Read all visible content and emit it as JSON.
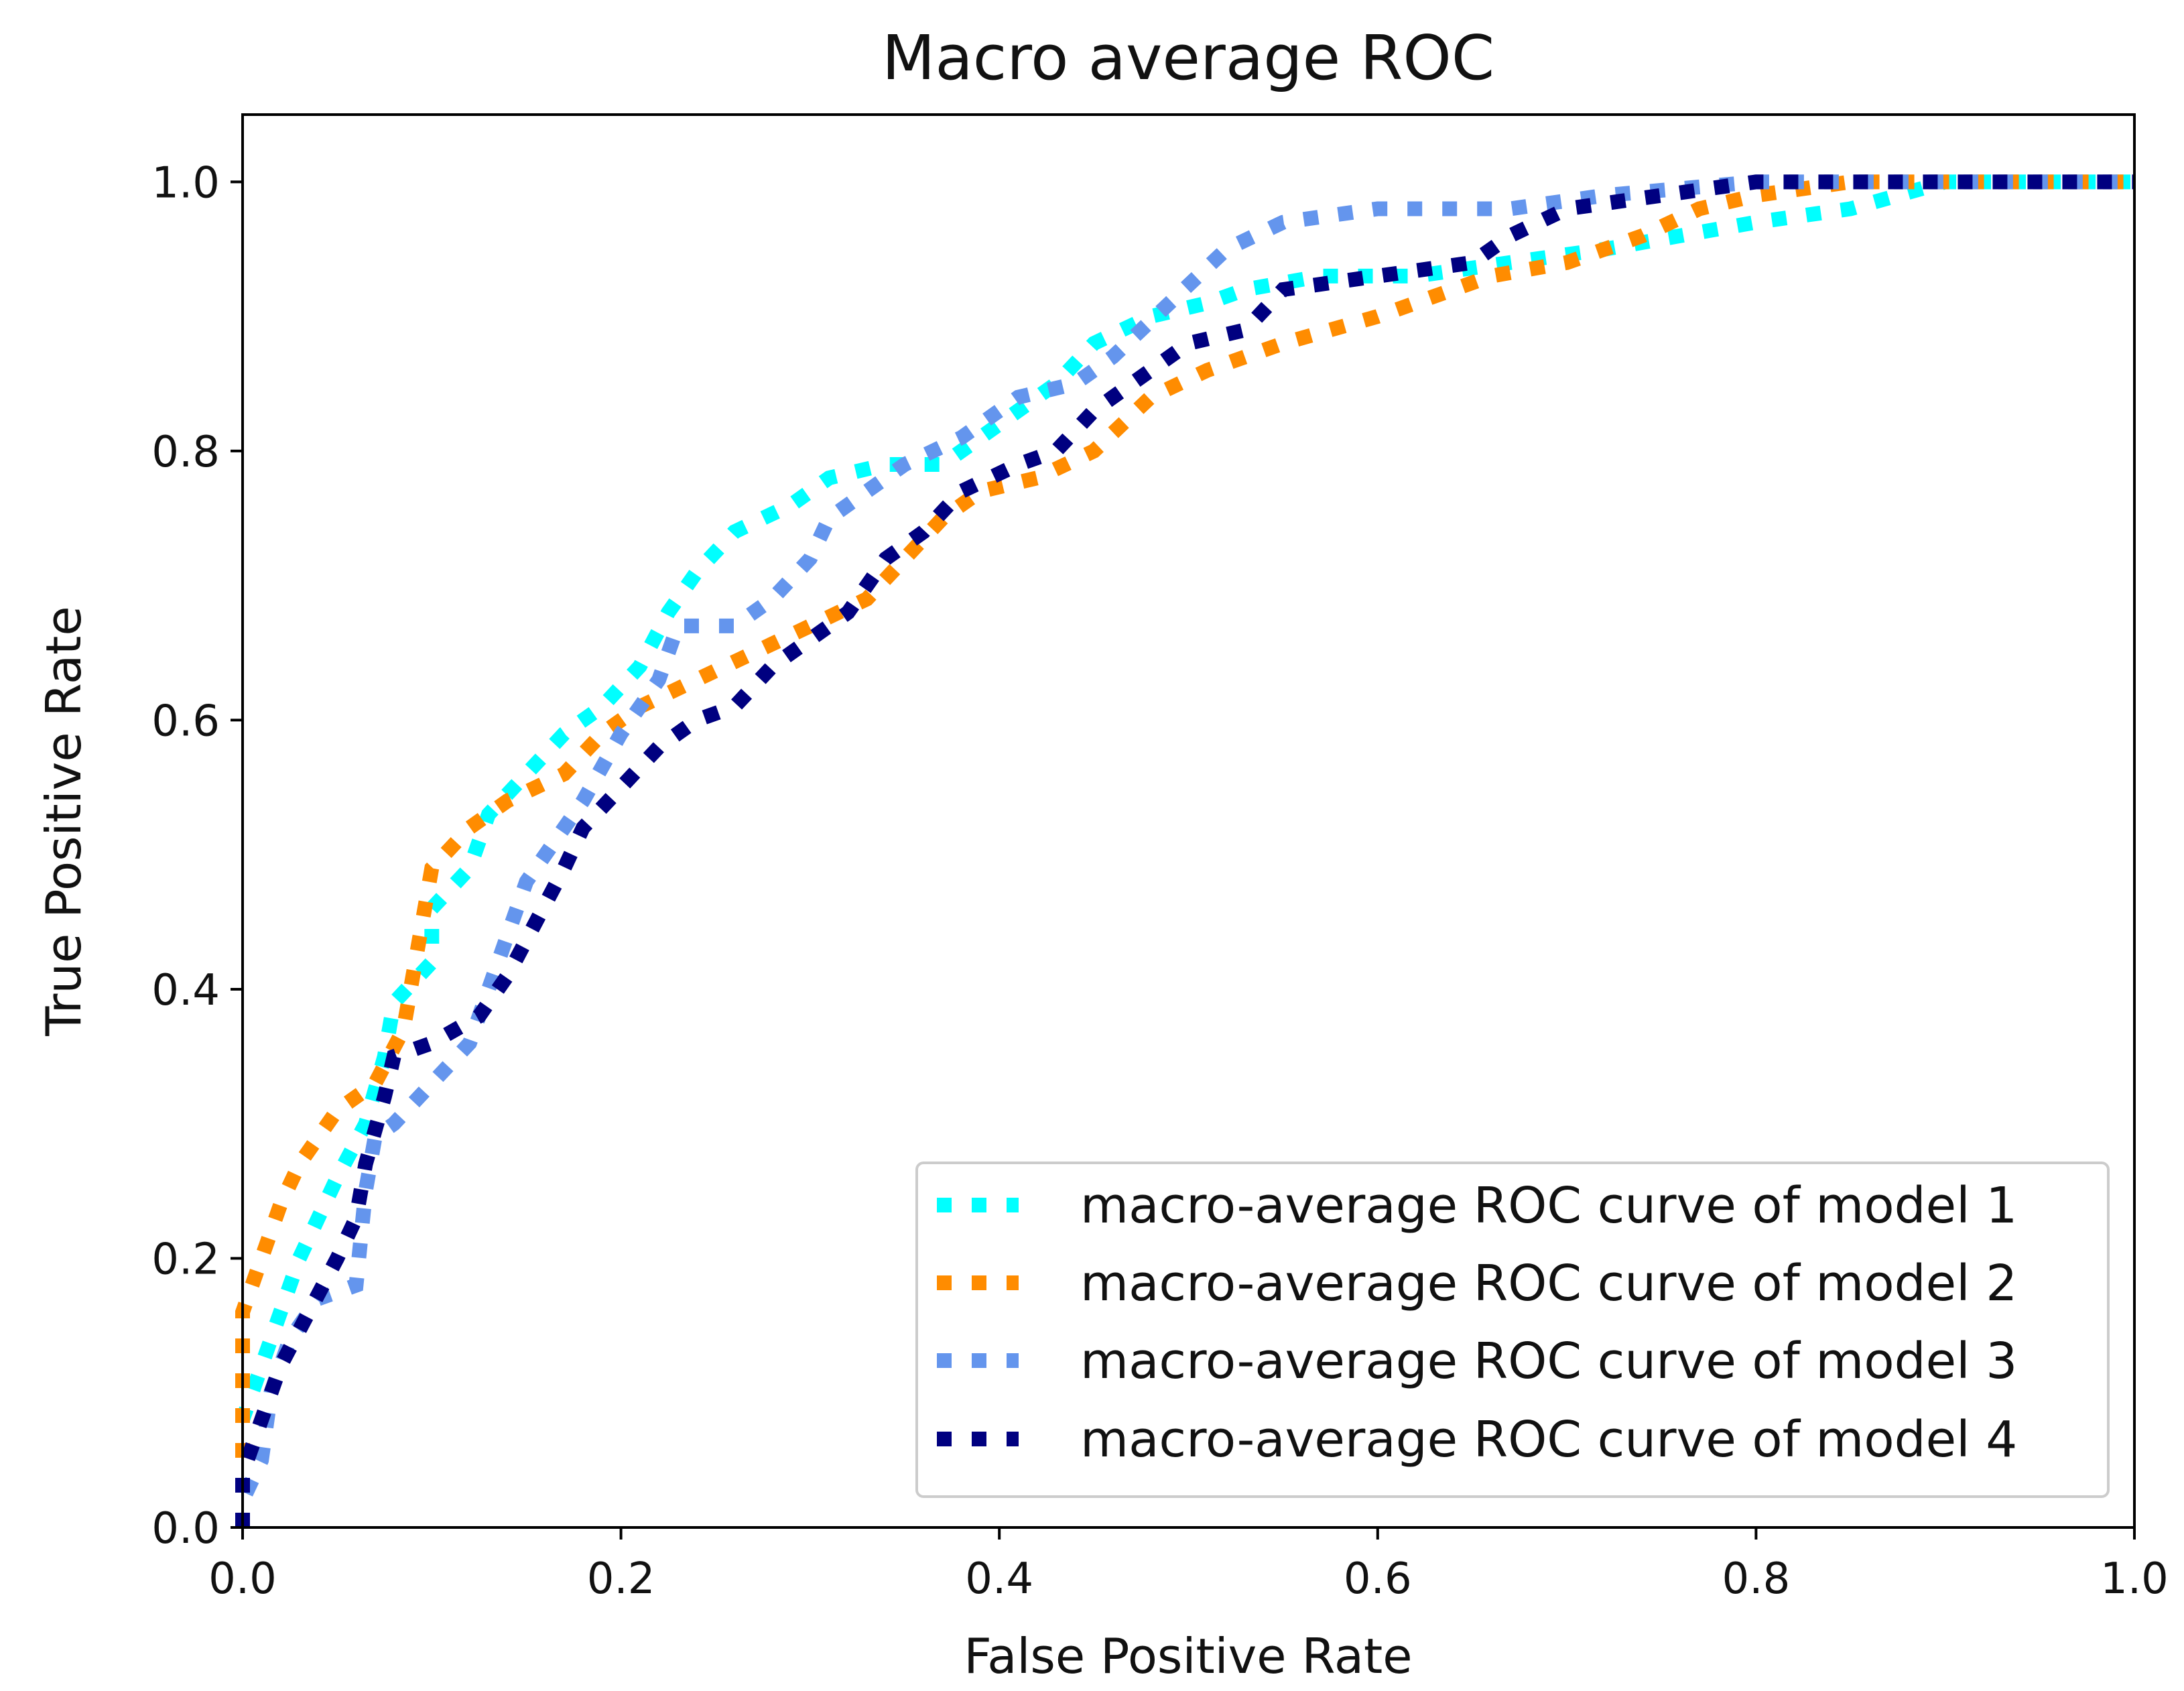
{
  "chart_data": {
    "type": "line",
    "title": "Macro average ROC",
    "xlabel": "False Positive Rate",
    "ylabel": "True Positive Rate",
    "xlim": [
      0.0,
      1.0
    ],
    "ylim": [
      0.0,
      1.05
    ],
    "grid": false,
    "legend_position": "bottom-right",
    "xticks": [
      "0.0",
      "0.2",
      "0.4",
      "0.6",
      "0.8",
      "1.0"
    ],
    "yticks": [
      "0.0",
      "0.2",
      "0.4",
      "0.6",
      "0.8",
      "1.0"
    ],
    "xtick_values": [
      0.0,
      0.2,
      0.4,
      0.6,
      0.8,
      1.0
    ],
    "ytick_values": [
      0.0,
      0.2,
      0.4,
      0.6,
      0.8,
      1.0
    ],
    "series": [
      {
        "name": "macro-average ROC curve of model 1",
        "color": "#00ffff",
        "points": [
          [
            0.0,
            0.0
          ],
          [
            0.0,
            0.08
          ],
          [
            0.01,
            0.12
          ],
          [
            0.02,
            0.16
          ],
          [
            0.03,
            0.2
          ],
          [
            0.04,
            0.23
          ],
          [
            0.05,
            0.26
          ],
          [
            0.065,
            0.3
          ],
          [
            0.075,
            0.35
          ],
          [
            0.08,
            0.39
          ],
          [
            0.1,
            0.42
          ],
          [
            0.1,
            0.46
          ],
          [
            0.12,
            0.49
          ],
          [
            0.13,
            0.53
          ],
          [
            0.15,
            0.56
          ],
          [
            0.17,
            0.59
          ],
          [
            0.19,
            0.61
          ],
          [
            0.21,
            0.64
          ],
          [
            0.225,
            0.68
          ],
          [
            0.24,
            0.71
          ],
          [
            0.26,
            0.74
          ],
          [
            0.29,
            0.76
          ],
          [
            0.31,
            0.78
          ],
          [
            0.34,
            0.79
          ],
          [
            0.37,
            0.79
          ],
          [
            0.4,
            0.82
          ],
          [
            0.43,
            0.85
          ],
          [
            0.45,
            0.88
          ],
          [
            0.48,
            0.9
          ],
          [
            0.51,
            0.91
          ],
          [
            0.53,
            0.92
          ],
          [
            0.57,
            0.93
          ],
          [
            0.62,
            0.93
          ],
          [
            0.67,
            0.94
          ],
          [
            0.72,
            0.95
          ],
          [
            0.76,
            0.96
          ],
          [
            0.8,
            0.97
          ],
          [
            0.85,
            0.98
          ],
          [
            0.9,
            1.0
          ],
          [
            1.0,
            1.0
          ]
        ]
      },
      {
        "name": "macro-average ROC curve of model 2",
        "color": "#ff8c00",
        "points": [
          [
            0.0,
            0.0
          ],
          [
            0.0,
            0.16
          ],
          [
            0.01,
            0.2
          ],
          [
            0.02,
            0.24
          ],
          [
            0.03,
            0.27
          ],
          [
            0.05,
            0.31
          ],
          [
            0.07,
            0.33
          ],
          [
            0.085,
            0.37
          ],
          [
            0.09,
            0.41
          ],
          [
            0.095,
            0.45
          ],
          [
            0.1,
            0.49
          ],
          [
            0.12,
            0.52
          ],
          [
            0.14,
            0.54
          ],
          [
            0.17,
            0.56
          ],
          [
            0.19,
            0.59
          ],
          [
            0.21,
            0.61
          ],
          [
            0.24,
            0.63
          ],
          [
            0.27,
            0.65
          ],
          [
            0.3,
            0.67
          ],
          [
            0.33,
            0.69
          ],
          [
            0.35,
            0.72
          ],
          [
            0.37,
            0.75
          ],
          [
            0.39,
            0.77
          ],
          [
            0.42,
            0.78
          ],
          [
            0.45,
            0.8
          ],
          [
            0.48,
            0.84
          ],
          [
            0.51,
            0.86
          ],
          [
            0.55,
            0.88
          ],
          [
            0.6,
            0.9
          ],
          [
            0.66,
            0.93
          ],
          [
            0.7,
            0.94
          ],
          [
            0.74,
            0.96
          ],
          [
            0.77,
            0.98
          ],
          [
            0.8,
            0.99
          ],
          [
            0.85,
            1.0
          ],
          [
            1.0,
            1.0
          ]
        ]
      },
      {
        "name": "macro-average ROC curve of model 3",
        "color": "#6495ed",
        "points": [
          [
            0.0,
            0.0
          ],
          [
            0.0,
            0.02
          ],
          [
            0.01,
            0.05
          ],
          [
            0.015,
            0.1
          ],
          [
            0.025,
            0.14
          ],
          [
            0.04,
            0.17
          ],
          [
            0.06,
            0.18
          ],
          [
            0.065,
            0.25
          ],
          [
            0.07,
            0.29
          ],
          [
            0.08,
            0.3
          ],
          [
            0.1,
            0.33
          ],
          [
            0.12,
            0.36
          ],
          [
            0.13,
            0.4
          ],
          [
            0.14,
            0.44
          ],
          [
            0.15,
            0.48
          ],
          [
            0.165,
            0.51
          ],
          [
            0.18,
            0.54
          ],
          [
            0.2,
            0.59
          ],
          [
            0.22,
            0.63
          ],
          [
            0.23,
            0.67
          ],
          [
            0.26,
            0.67
          ],
          [
            0.28,
            0.69
          ],
          [
            0.3,
            0.72
          ],
          [
            0.31,
            0.75
          ],
          [
            0.33,
            0.77
          ],
          [
            0.35,
            0.79
          ],
          [
            0.38,
            0.81
          ],
          [
            0.41,
            0.84
          ],
          [
            0.44,
            0.85
          ],
          [
            0.46,
            0.87
          ],
          [
            0.49,
            0.91
          ],
          [
            0.52,
            0.95
          ],
          [
            0.55,
            0.97
          ],
          [
            0.6,
            0.98
          ],
          [
            0.67,
            0.98
          ],
          [
            0.72,
            0.99
          ],
          [
            0.8,
            1.0
          ],
          [
            1.0,
            1.0
          ]
        ]
      },
      {
        "name": "macro-average ROC curve of model 4",
        "color": "#000080",
        "points": [
          [
            0.0,
            0.0
          ],
          [
            0.0,
            0.04
          ],
          [
            0.01,
            0.08
          ],
          [
            0.02,
            0.12
          ],
          [
            0.035,
            0.16
          ],
          [
            0.05,
            0.2
          ],
          [
            0.06,
            0.23
          ],
          [
            0.065,
            0.27
          ],
          [
            0.075,
            0.32
          ],
          [
            0.08,
            0.35
          ],
          [
            0.1,
            0.36
          ],
          [
            0.125,
            0.38
          ],
          [
            0.14,
            0.41
          ],
          [
            0.155,
            0.45
          ],
          [
            0.17,
            0.49
          ],
          [
            0.18,
            0.52
          ],
          [
            0.2,
            0.55
          ],
          [
            0.22,
            0.58
          ],
          [
            0.24,
            0.6
          ],
          [
            0.26,
            0.61
          ],
          [
            0.28,
            0.64
          ],
          [
            0.3,
            0.66
          ],
          [
            0.32,
            0.68
          ],
          [
            0.34,
            0.72
          ],
          [
            0.36,
            0.74
          ],
          [
            0.38,
            0.77
          ],
          [
            0.41,
            0.79
          ],
          [
            0.43,
            0.8
          ],
          [
            0.45,
            0.83
          ],
          [
            0.47,
            0.85
          ],
          [
            0.5,
            0.88
          ],
          [
            0.53,
            0.89
          ],
          [
            0.55,
            0.92
          ],
          [
            0.6,
            0.93
          ],
          [
            0.65,
            0.94
          ],
          [
            0.67,
            0.96
          ],
          [
            0.7,
            0.98
          ],
          [
            0.75,
            0.99
          ],
          [
            0.8,
            1.0
          ],
          [
            1.0,
            1.0
          ]
        ]
      }
    ]
  }
}
